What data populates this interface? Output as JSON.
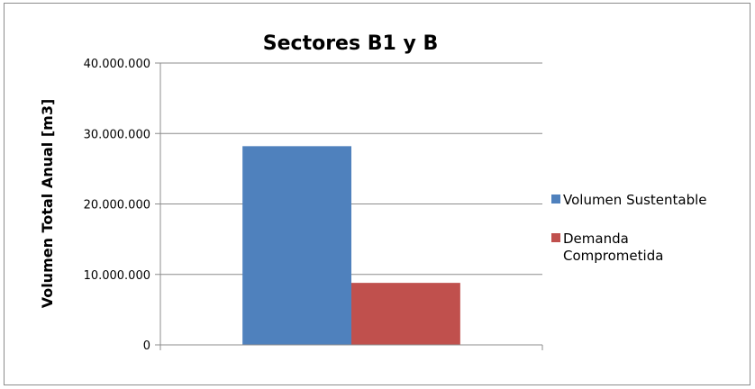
{
  "chart_data": {
    "type": "bar",
    "title": "Sectores B1 y B",
    "ylabel": "Volumen Total Anual [m3]",
    "xlabel": "",
    "categories": [
      ""
    ],
    "series": [
      {
        "name": "Volumen Sustentable",
        "values": [
          28200000
        ],
        "color": "#4f81bd"
      },
      {
        "name": "Demanda Comprometida",
        "values": [
          8800000
        ],
        "color": "#c0504d"
      }
    ],
    "ylim": [
      0,
      40000000
    ],
    "yticks": [
      0,
      10000000,
      20000000,
      30000000,
      40000000
    ],
    "ytick_labels": [
      "0",
      "10.000.000",
      "20.000.000",
      "30.000.000",
      "40.000.000"
    ],
    "grid": true,
    "legend": "right"
  }
}
